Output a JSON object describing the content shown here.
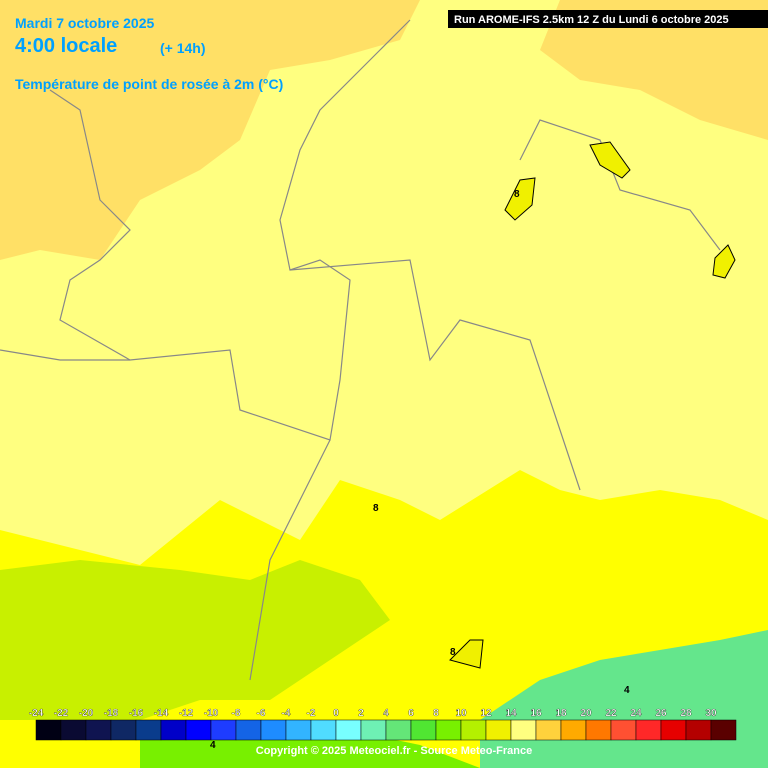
{
  "header": {
    "date": "Mardi 7 octobre 2025",
    "time": "4:00 locale",
    "lead": "(+ 14h)",
    "parameter": "Température de point de rosée à 2m (°C)",
    "run": "Run AROME-IFS 2.5km 12 Z du Lundi 6 octobre 2025"
  },
  "map": {
    "contour_labels": [
      "8",
      "8",
      "8",
      "4",
      "4"
    ]
  },
  "legend": {
    "ticks": [
      -24,
      -22,
      -20,
      -18,
      -16,
      -14,
      -12,
      -10,
      -8,
      -6,
      -4,
      -2,
      0,
      2,
      4,
      6,
      8,
      10,
      12,
      14,
      16,
      18,
      20,
      22,
      24,
      26,
      28,
      30
    ],
    "colors": [
      "#000014",
      "#0a0a32",
      "#0f1450",
      "#0f2864",
      "#0a3c8c",
      "#0000c8",
      "#0000ff",
      "#1e3cff",
      "#1464e6",
      "#1e8cff",
      "#32b4ff",
      "#50dcff",
      "#78ffff",
      "#6ef0b4",
      "#64e678",
      "#50e632",
      "#78f000",
      "#b4f000",
      "#f0f000",
      "#ffff80",
      "#ffd23c",
      "#ffaa00",
      "#ff7800",
      "#ff5032",
      "#ff2828",
      "#e60000",
      "#b40000",
      "#5a0000"
    ]
  },
  "footer": {
    "copyright": "Copyright © 2025 Meteociel.fr - Source Meteo-France"
  }
}
